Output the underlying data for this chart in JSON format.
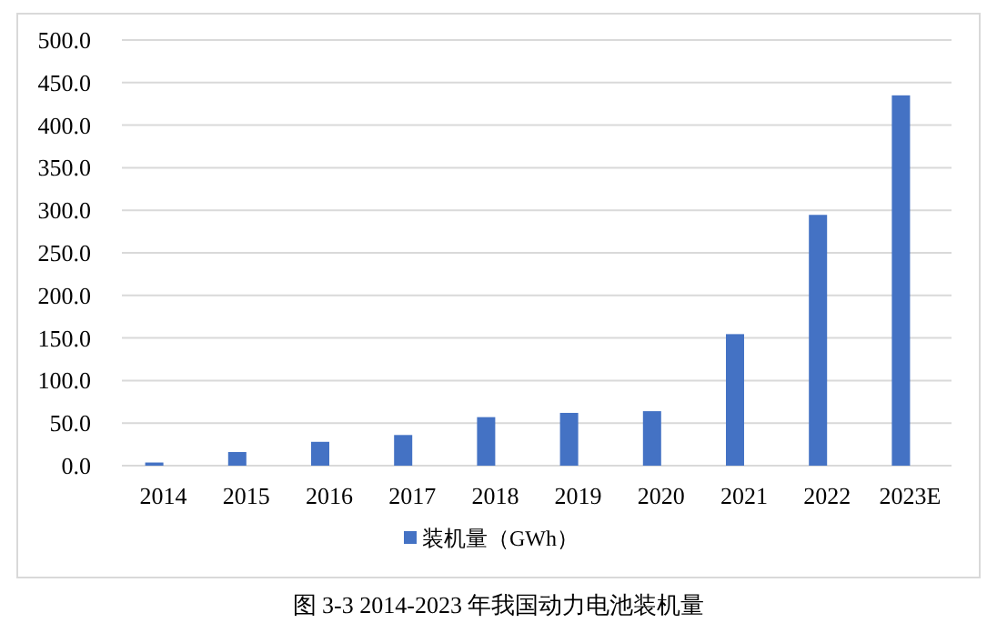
{
  "chart_data": {
    "type": "bar",
    "categories": [
      "2014",
      "2015",
      "2016",
      "2017",
      "2018",
      "2019",
      "2020",
      "2021",
      "2022",
      "2023E"
    ],
    "series": [
      {
        "name": "装机量（GWh）",
        "color": "#4472c4",
        "values": [
          3.7,
          16,
          28,
          36,
          57,
          62,
          64,
          154.5,
          294.6,
          435
        ]
      }
    ],
    "ylim": [
      0,
      500
    ],
    "yticks": [
      {
        "value": 0,
        "label": "0.0"
      },
      {
        "value": 50,
        "label": "50.0"
      },
      {
        "value": 100,
        "label": "100.0"
      },
      {
        "value": 150,
        "label": "150.0"
      },
      {
        "value": 200,
        "label": "200.0"
      },
      {
        "value": 250,
        "label": "250.0"
      },
      {
        "value": 300,
        "label": "300.0"
      },
      {
        "value": 350,
        "label": "350.0"
      },
      {
        "value": 400,
        "label": "400.0"
      },
      {
        "value": 450,
        "label": "450.0"
      },
      {
        "value": 500,
        "label": "500.0"
      }
    ],
    "grid": "y",
    "legend": "bottom",
    "annotations": [
      "图 3-3 2014-2023 年我国动力电池装机量"
    ]
  }
}
